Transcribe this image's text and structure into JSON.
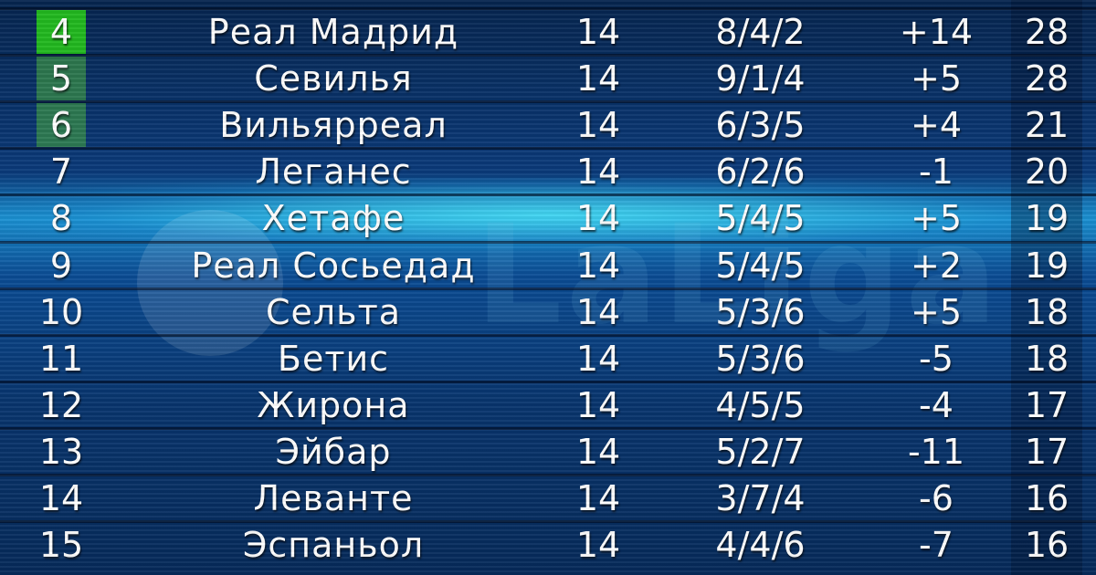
{
  "colors": {
    "top_zone": "#22b81f",
    "europa_zone": "#3c9646",
    "highlight": "#50f0ff"
  },
  "logo_text": "LaLiga",
  "rows": [
    {
      "pos": "4",
      "team": "Реал Мадрид",
      "games": "14",
      "wdl": "8/4/2",
      "diff": "+14",
      "pts": "28",
      "zone": "g1"
    },
    {
      "pos": "5",
      "team": "Севилья",
      "games": "14",
      "wdl": "9/1/4",
      "diff": "+5",
      "pts": "28",
      "zone": "g2"
    },
    {
      "pos": "6",
      "team": "Вильярреал",
      "games": "14",
      "wdl": "6/3/5",
      "diff": "+4",
      "pts": "21",
      "zone": "g2"
    },
    {
      "pos": "7",
      "team": "Леганес",
      "games": "14",
      "wdl": "6/2/6",
      "diff": "-1",
      "pts": "20",
      "zone": ""
    },
    {
      "pos": "8",
      "team": "Хетафе",
      "games": "14",
      "wdl": "5/4/5",
      "diff": "+5",
      "pts": "19",
      "zone": ""
    },
    {
      "pos": "9",
      "team": "Реал Сосьедад",
      "games": "14",
      "wdl": "5/4/5",
      "diff": "+2",
      "pts": "19",
      "zone": ""
    },
    {
      "pos": "10",
      "team": "Сельта",
      "games": "14",
      "wdl": "5/3/6",
      "diff": "+5",
      "pts": "18",
      "zone": ""
    },
    {
      "pos": "11",
      "team": "Бетис",
      "games": "14",
      "wdl": "5/3/6",
      "diff": "-5",
      "pts": "18",
      "zone": ""
    },
    {
      "pos": "12",
      "team": "Жирона",
      "games": "14",
      "wdl": "4/5/5",
      "diff": "-4",
      "pts": "17",
      "zone": ""
    },
    {
      "pos": "13",
      "team": "Эйбар",
      "games": "14",
      "wdl": "5/2/7",
      "diff": "-11",
      "pts": "17",
      "zone": ""
    },
    {
      "pos": "14",
      "team": "Леванте",
      "games": "14",
      "wdl": "3/7/4",
      "diff": "-6",
      "pts": "16",
      "zone": ""
    },
    {
      "pos": "15",
      "team": "Эспаньол",
      "games": "14",
      "wdl": "4/4/6",
      "diff": "-7",
      "pts": "16",
      "zone": ""
    }
  ]
}
